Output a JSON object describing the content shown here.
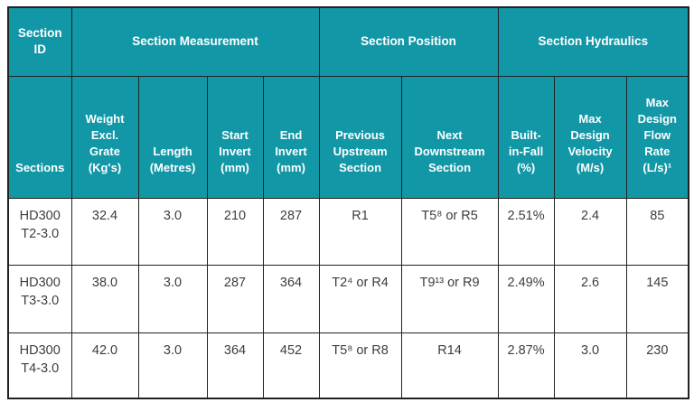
{
  "colors": {
    "header_bg": "#1297a7",
    "header_text": "#ffffff",
    "body_text": "#3d3d3d",
    "border": "#222222"
  },
  "table": {
    "groups": [
      {
        "key": "section-id",
        "label": "Section\nID",
        "colspan": 1
      },
      {
        "key": "section-measurement",
        "label": "Section Measurement",
        "colspan": 4
      },
      {
        "key": "section-position",
        "label": "Section Position",
        "colspan": 2
      },
      {
        "key": "section-hydraulics",
        "label": "Section Hydraulics",
        "colspan": 3
      }
    ],
    "columns": [
      {
        "key": "sections",
        "label": "Sections"
      },
      {
        "key": "weight-excl-grate",
        "label": "Weight\nExcl.\nGrate\n(Kg's)"
      },
      {
        "key": "length",
        "label": "Length\n(Metres)"
      },
      {
        "key": "start-invert",
        "label": "Start\nInvert\n(mm)"
      },
      {
        "key": "end-invert",
        "label": "End\nInvert\n(mm)"
      },
      {
        "key": "previous-upstream-section",
        "label": "Previous\nUpstream\nSection"
      },
      {
        "key": "next-downstream-section",
        "label": "Next\nDownstream\nSection"
      },
      {
        "key": "built-in-fall",
        "label": "Built-\nin-Fall\n(%)"
      },
      {
        "key": "max-design-velocity",
        "label": "Max\nDesign\nVelocity\n(M/s)"
      },
      {
        "key": "max-design-flow-rate",
        "label": "Max\nDesign\nFlow\nRate\n(L/s)¹"
      }
    ],
    "rows": [
      {
        "cells": [
          "HD300\nT2-3.0",
          "32.4",
          "3.0",
          "210",
          "287",
          "R1",
          "T5⁸ or R5",
          "2.51%",
          "2.4",
          "85"
        ]
      },
      {
        "cells": [
          "HD300\nT3-3.0",
          "38.0",
          "3.0",
          "287",
          "364",
          "T2⁴ or R4",
          "T9¹³ or R9",
          "2.49%",
          "2.6",
          "145"
        ]
      },
      {
        "cells": [
          "HD300\nT4-3.0",
          "42.0",
          "3.0",
          "364",
          "452",
          "T5⁸ or R8",
          "R14",
          "2.87%",
          "3.0",
          "230"
        ]
      }
    ]
  }
}
